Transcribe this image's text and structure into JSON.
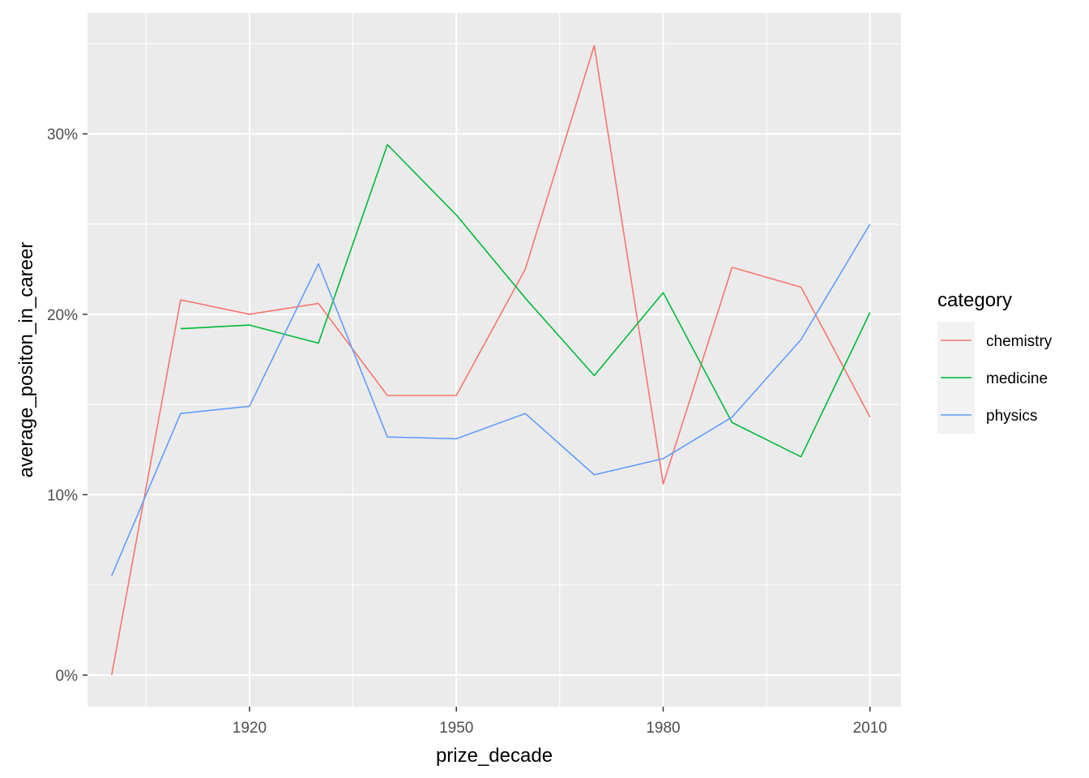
{
  "chart_data": {
    "type": "line",
    "title": "",
    "xlabel": "prize_decade",
    "ylabel": "average_positon_in_career",
    "xlim": [
      1896.5,
      2014.5
    ],
    "ylim": [
      -0.0175,
      0.367
    ],
    "x_ticks": [
      1920,
      1950,
      1980,
      2010
    ],
    "x_tick_labels": [
      "1920",
      "1950",
      "1980",
      "2010"
    ],
    "y_ticks": [
      0,
      0.1,
      0.2,
      0.3
    ],
    "y_tick_labels": [
      "0%",
      "10%",
      "20%",
      "30%"
    ],
    "grid": true,
    "legend": {
      "title": "category",
      "position": "right"
    },
    "series": [
      {
        "name": "chemistry",
        "color": "#F8766D",
        "x": [
          1900,
          1910,
          1920,
          1930,
          1940,
          1950,
          1960,
          1970,
          1980,
          1990,
          2000,
          2010
        ],
        "values": [
          0.0,
          0.208,
          0.2,
          0.206,
          0.155,
          0.155,
          0.225,
          0.349,
          0.106,
          0.226,
          0.215,
          0.143
        ]
      },
      {
        "name": "medicine",
        "color": "#00BA38",
        "x": [
          1910,
          1920,
          1930,
          1940,
          1950,
          1960,
          1970,
          1980,
          1990,
          2000,
          2010
        ],
        "values": [
          0.192,
          0.194,
          0.184,
          0.294,
          0.255,
          0.209,
          0.166,
          0.212,
          0.14,
          0.121,
          0.201
        ]
      },
      {
        "name": "physics",
        "color": "#619CFF",
        "x": [
          1900,
          1910,
          1920,
          1930,
          1940,
          1950,
          1960,
          1970,
          1980,
          1990,
          2000,
          2010
        ],
        "values": [
          0.055,
          0.145,
          0.149,
          0.228,
          0.132,
          0.131,
          0.145,
          0.111,
          0.12,
          0.143,
          0.186,
          0.25
        ]
      }
    ]
  }
}
